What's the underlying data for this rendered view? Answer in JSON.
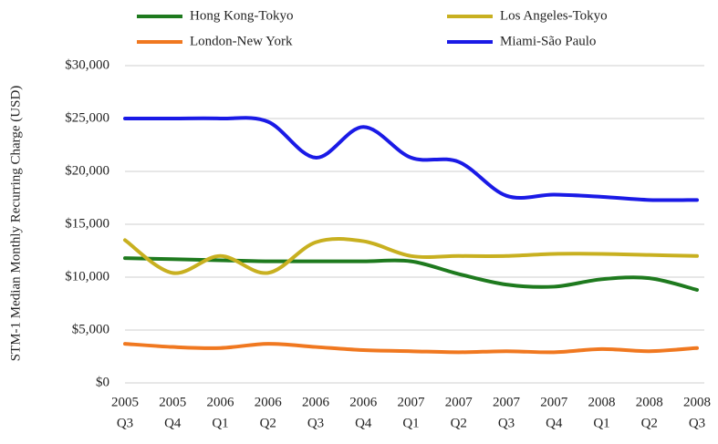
{
  "chart_data": {
    "type": "line",
    "y_label": "STM-1 Median Monthly Recurring Charge (USD)",
    "categories": [
      [
        "2005",
        "Q3"
      ],
      [
        "2005",
        "Q4"
      ],
      [
        "2006",
        "Q1"
      ],
      [
        "2006",
        "Q2"
      ],
      [
        "2006",
        "Q3"
      ],
      [
        "2006",
        "Q4"
      ],
      [
        "2007",
        "Q1"
      ],
      [
        "2007",
        "Q2"
      ],
      [
        "2007",
        "Q3"
      ],
      [
        "2007",
        "Q4"
      ],
      [
        "2008",
        "Q1"
      ],
      [
        "2008",
        "Q2"
      ],
      [
        "2008",
        "Q3"
      ]
    ],
    "series": [
      {
        "name": "Hong Kong-Tokyo",
        "color": "#1e7a1e",
        "values": [
          11800,
          11700,
          11600,
          11500,
          11500,
          11500,
          11500,
          10300,
          9300,
          9100,
          9800,
          9900,
          8800
        ]
      },
      {
        "name": "Los Angeles-Tokyo",
        "color": "#c8b020",
        "values": [
          13500,
          10400,
          12000,
          10400,
          13300,
          13400,
          12000,
          12000,
          12000,
          12200,
          12200,
          12100,
          12000
        ]
      },
      {
        "name": "London-New York",
        "color": "#f07820",
        "values": [
          3700,
          3400,
          3300,
          3700,
          3400,
          3100,
          3000,
          2900,
          3000,
          2900,
          3200,
          3000,
          3300
        ]
      },
      {
        "name": "Miami-São Paulo",
        "color": "#1a1ae6",
        "values": [
          25000,
          25000,
          25000,
          24700,
          21300,
          24200,
          21300,
          20900,
          17700,
          17800,
          17600,
          17300,
          17300
        ]
      }
    ],
    "ylim": [
      0,
      30000
    ],
    "yticks": [
      {
        "value": 0,
        "label": "$0"
      },
      {
        "value": 5000,
        "label": "$5,000"
      },
      {
        "value": 10000,
        "label": "$10,000"
      },
      {
        "value": 15000,
        "label": "$15,000"
      },
      {
        "value": 20000,
        "label": "$20,000"
      },
      {
        "value": 25000,
        "label": "$25,000"
      },
      {
        "value": 30000,
        "label": "$30,000"
      }
    ],
    "grid": true
  }
}
